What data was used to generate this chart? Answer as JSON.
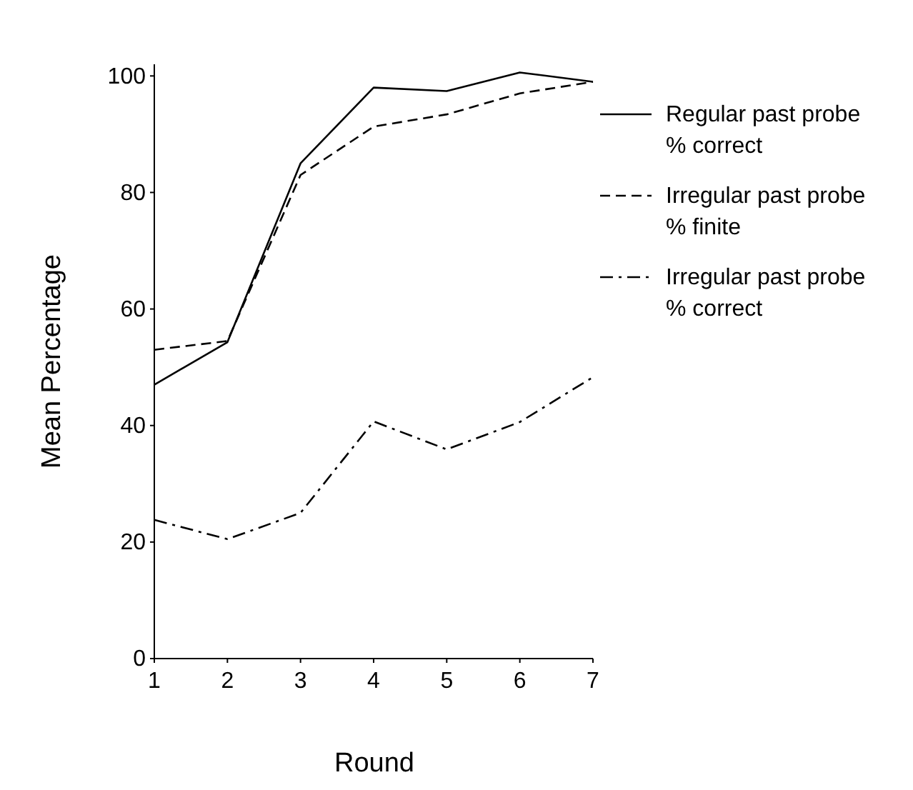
{
  "chart_data": {
    "type": "line",
    "xlabel": "Round",
    "ylabel": "Mean Percentage",
    "x": [
      1,
      2,
      3,
      4,
      5,
      6,
      7
    ],
    "xlim": [
      1,
      7
    ],
    "xticks": [
      1,
      2,
      3,
      4,
      5,
      6,
      7
    ],
    "ylim": [
      0,
      102
    ],
    "yticks": [
      0,
      20,
      40,
      60,
      80,
      100
    ],
    "legend": "right",
    "grid": false,
    "marker": "none",
    "series": [
      {
        "name": "Regular past probe % correct",
        "color": "#000000",
        "line_style": "solid",
        "values": [
          47,
          54.3,
          85,
          98,
          97.4,
          100.6,
          99
        ]
      },
      {
        "name": "Irregular past probe % finite",
        "color": "#000000",
        "line_style": "dashed",
        "values": [
          53,
          54.5,
          83,
          91.3,
          93.4,
          97,
          99
        ]
      },
      {
        "name": "Irregular past probe % correct",
        "color": "#000000",
        "line_style": "dashdot",
        "values": [
          23.8,
          20.5,
          25,
          40.7,
          35.9,
          40.6,
          48.3
        ]
      }
    ]
  }
}
